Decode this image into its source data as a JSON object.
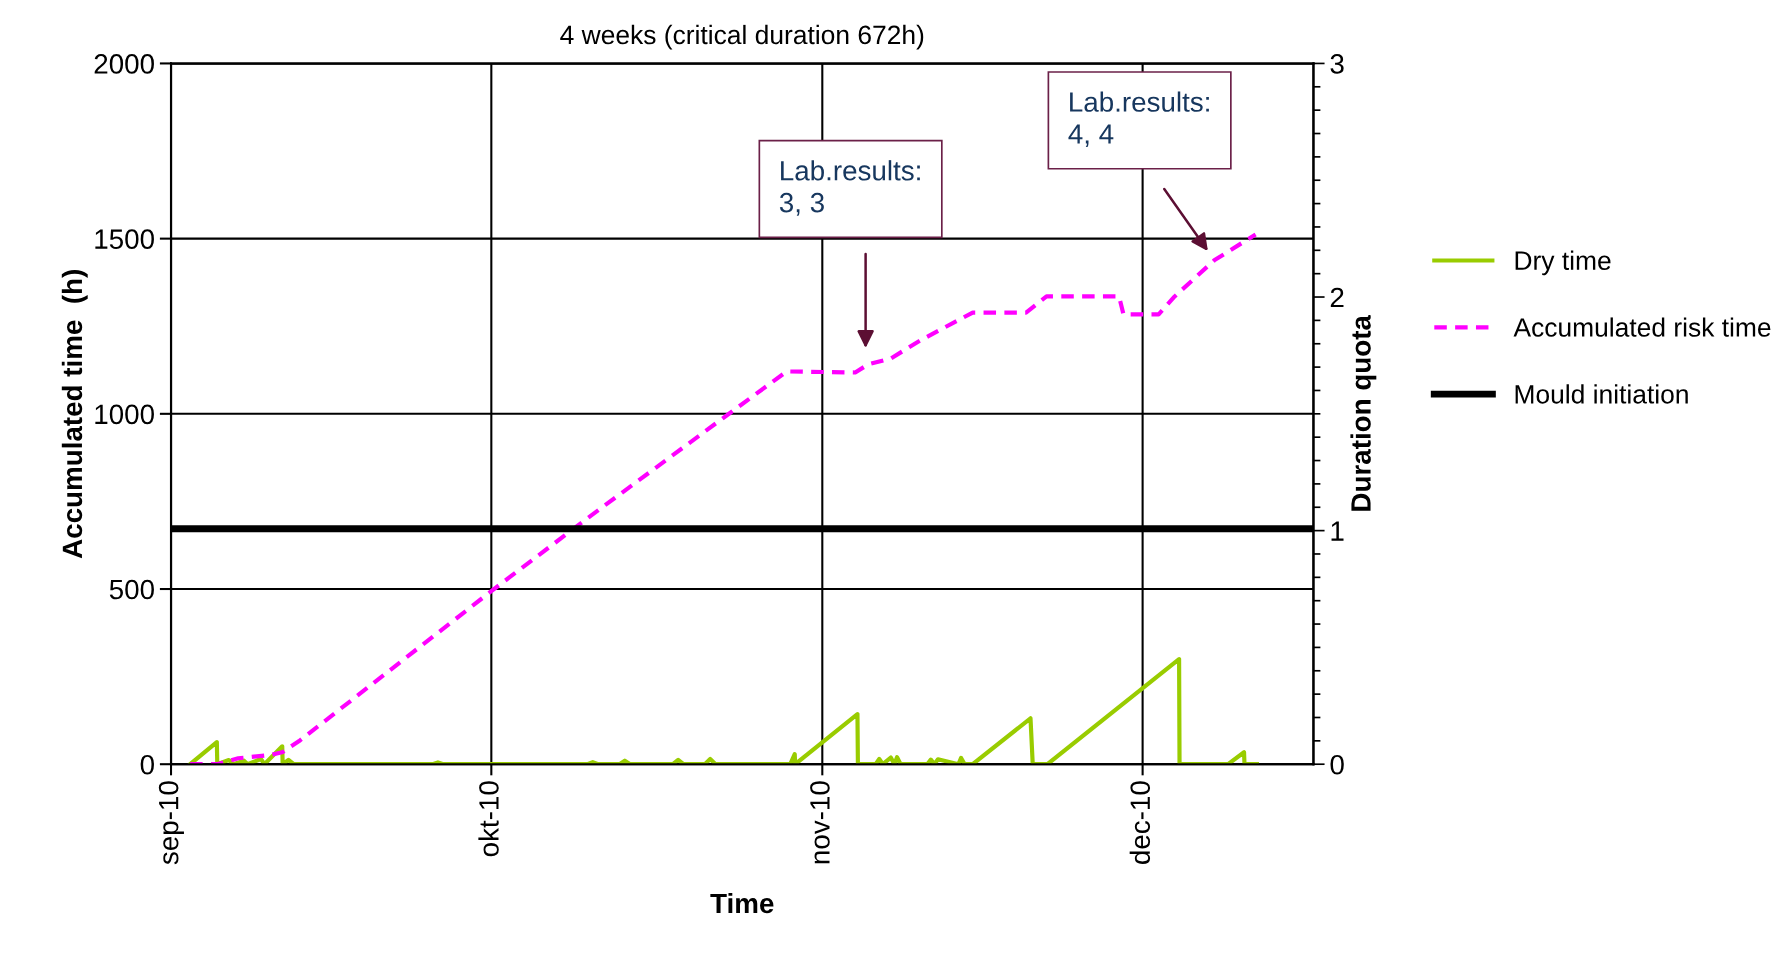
{
  "chart_data": {
    "type": "line",
    "title": "4 weeks (critical duration 672h)",
    "xlabel": "Time",
    "ylabel": "Accumulated time  (h)",
    "y2label": "Duration quota",
    "xlim": [
      "2010-09-01",
      "2010-12-17"
    ],
    "xticks": [
      {
        "value": "2010-09-01",
        "label": "sep-10"
      },
      {
        "value": "2010-10-01",
        "label": "okt-10"
      },
      {
        "value": "2010-11-01",
        "label": "nov-10"
      },
      {
        "value": "2010-12-01",
        "label": "dec-10"
      }
    ],
    "ylim": [
      0,
      2000
    ],
    "yticks": [
      0,
      500,
      1000,
      1500,
      2000
    ],
    "y2lim": [
      0,
      3
    ],
    "y2ticks": [
      0,
      {
        "value": 0.1,
        "label": null
      },
      {
        "value": 0.2,
        "label": null
      },
      {
        "value": 0.3,
        "label": null
      },
      {
        "value": 0.4,
        "label": null
      },
      {
        "value": 0.5,
        "label": null
      },
      {
        "value": 0.6,
        "label": null
      },
      {
        "value": 0.7,
        "label": null
      },
      {
        "value": 0.8,
        "label": null
      },
      {
        "value": 0.9,
        "label": null
      },
      1,
      {
        "value": 1.1,
        "label": null
      },
      {
        "value": 1.2,
        "label": null
      },
      {
        "value": 1.3,
        "label": null
      },
      {
        "value": 1.4,
        "label": null
      },
      {
        "value": 1.5,
        "label": null
      },
      {
        "value": 1.6,
        "label": null
      },
      {
        "value": 1.7,
        "label": null
      },
      {
        "value": 1.8,
        "label": null
      },
      {
        "value": 1.9,
        "label": null
      },
      2,
      {
        "value": 2.1,
        "label": null
      },
      {
        "value": 2.2,
        "label": null
      },
      {
        "value": 2.3,
        "label": null
      },
      {
        "value": 2.4,
        "label": null
      },
      {
        "value": 2.5,
        "label": null
      },
      {
        "value": 2.6,
        "label": null
      },
      {
        "value": 2.7,
        "label": null
      },
      {
        "value": 2.8,
        "label": null
      },
      {
        "value": 2.9,
        "label": null
      },
      3
    ],
    "grid": true,
    "legend": "right",
    "marker": "none",
    "series": [
      {
        "name": "Dry time",
        "color": "#99cc00",
        "line_style": "solid",
        "x": [
          "2010-09-02T19:00",
          "2010-09-05T07:00",
          "2010-09-05T08:00",
          "2010-09-06T10:00",
          "2010-09-06T20:00",
          "2010-09-07T20:00",
          "2010-09-08T04:00",
          "2010-09-09T10:00",
          "2010-09-09T18:00",
          "2010-09-11T10:00",
          "2010-09-11T11:00",
          "2010-09-12T00:00",
          "2010-09-12T12:00",
          "2010-09-14T00:00",
          "2010-09-25T12:00",
          "2010-09-26T00:00",
          "2010-09-26T12:00",
          "2010-10-09T00:00",
          "2010-10-10T00:00",
          "2010-10-10T12:00",
          "2010-10-11T00:00",
          "2010-10-13T00:00",
          "2010-10-13T12:00",
          "2010-10-14T00:00",
          "2010-10-18T00:00",
          "2010-10-18T12:00",
          "2010-10-19T00:00",
          "2010-10-21T00:00",
          "2010-10-21T12:00",
          "2010-10-22T00:00",
          "2010-10-29T00:00",
          "2010-10-29T10:00",
          "2010-10-29T11:00",
          "2010-11-04T07:00",
          "2010-11-04T08:00",
          "2010-11-06T00:00",
          "2010-11-06T08:00",
          "2010-11-06T16:00",
          "2010-11-07T10:00",
          "2010-11-07T18:00",
          "2010-11-08T00:00",
          "2010-11-08T08:00",
          "2010-11-10T20:00",
          "2010-11-11T04:00",
          "2010-11-11T12:00",
          "2010-11-11T20:00",
          "2010-11-13T18:00",
          "2010-11-14T00:00",
          "2010-11-14T08:00",
          "2010-11-15T02:00",
          "2010-11-20T12:00",
          "2010-11-20T17:00",
          "2010-11-22T02:00",
          "2010-12-04T10:00",
          "2010-12-04T11:00",
          "2010-12-09T00:00",
          "2010-12-10T12:00",
          "2010-12-10T13:00",
          "2010-12-11T17:00"
        ],
        "values": [
          0,
          63,
          0,
          12,
          0,
          10,
          0,
          15,
          0,
          51,
          0,
          12,
          0,
          0,
          0,
          5,
          0,
          0,
          0,
          6,
          0,
          0,
          10,
          0,
          0,
          12,
          0,
          0,
          15,
          0,
          0,
          29,
          0,
          143,
          0,
          0,
          15,
          0,
          19,
          0,
          20,
          0,
          0,
          13,
          0,
          14,
          0,
          18,
          0,
          0,
          131,
          0,
          0,
          300,
          0,
          0,
          34,
          0,
          0
        ]
      },
      {
        "name": "Accumulated risk time",
        "color": "#ff00ff",
        "line_style": "dashed",
        "x": [
          "2010-09-02T19:00",
          "2010-09-05T07:00",
          "2010-09-07T07:00",
          "2010-09-10T05:00",
          "2010-09-11T10:00",
          "2010-09-13T00:00",
          "2010-10-01T00:00",
          "2010-10-10T00:00",
          "2010-10-23T07:00",
          "2010-10-28T16:00",
          "2010-11-04T02:00",
          "2010-11-05T07:00",
          "2010-11-07T10:00",
          "2010-11-10T05:00",
          "2010-11-15T02:00",
          "2010-11-20T02:00",
          "2010-11-22T00:00",
          "2010-11-28T19:00",
          "2010-11-29T05:00",
          "2010-12-02T12:00",
          "2010-12-04T00:00",
          "2010-12-07T17:00",
          "2010-12-11T14:00"
        ],
        "values": [
          0,
          0,
          17,
          26,
          34,
          66,
          494,
          702,
          1001,
          1121,
          1118,
          1141,
          1158,
          1210,
          1289,
          1289,
          1335,
          1335,
          1284,
          1284,
          1335,
          1438,
          1512
        ]
      },
      {
        "name": "Mould initiation",
        "color": "#000000",
        "line_style": "solid",
        "x": [
          "2010-09-01",
          "2010-12-17"
        ],
        "values": [
          672,
          672
        ]
      }
    ],
    "annotations": [
      "Lab.results:\n3, 3",
      "Lab.results:\n4, 4"
    ]
  }
}
